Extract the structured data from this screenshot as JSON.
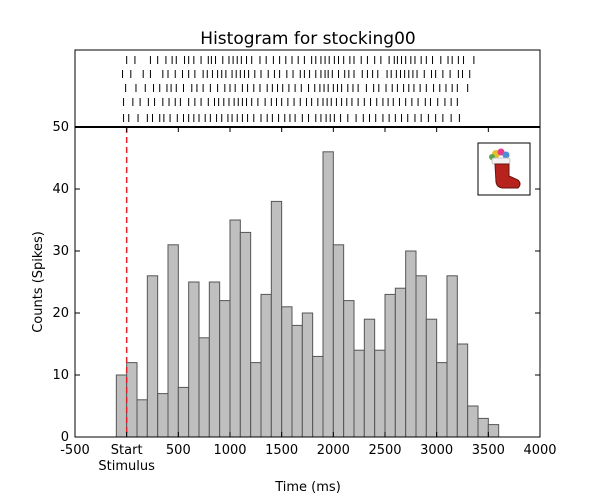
{
  "chart_data": {
    "type": "bar",
    "title": "Histogram for stocking00",
    "xlabel": "Time (ms)",
    "ylabel": "Counts (Spikes)",
    "xlim": [
      -500,
      4000
    ],
    "ylim": [
      0,
      50
    ],
    "x_ticks": [
      {
        "value": -500,
        "label": "-500"
      },
      {
        "value": 0,
        "label": "Start",
        "sublabel": "Stimulus"
      },
      {
        "value": 500,
        "label": "500"
      },
      {
        "value": 1000,
        "label": "1000"
      },
      {
        "value": 1500,
        "label": "1500"
      },
      {
        "value": 2000,
        "label": "2000"
      },
      {
        "value": 2500,
        "label": "2500"
      },
      {
        "value": 3000,
        "label": "3000"
      },
      {
        "value": 3500,
        "label": "3500"
      },
      {
        "value": 4000,
        "label": "4000"
      }
    ],
    "y_ticks": [
      0,
      10,
      20,
      30,
      40,
      50
    ],
    "bin_start": -100,
    "bin_width": 100,
    "counts": [
      10,
      12,
      6,
      26,
      7,
      31,
      8,
      25,
      16,
      25,
      22,
      35,
      33,
      12,
      23,
      38,
      21,
      18,
      20,
      13,
      46,
      31,
      22,
      14,
      19,
      14,
      23,
      24,
      30,
      26,
      19,
      12,
      26,
      15,
      5,
      3,
      2
    ],
    "stimulus_line_x": 0,
    "bar_color": "#bfbfbf",
    "bar_edge_color": "#555555",
    "stimulus_color": "#e8202a",
    "raster_trials": [
      [
        0,
        80,
        230,
        300,
        380,
        440,
        480,
        560,
        600,
        650,
        720,
        790,
        820,
        860,
        930,
        990,
        1030,
        1070,
        1110,
        1160,
        1210,
        1290,
        1350,
        1420,
        1480,
        1540,
        1600,
        1660,
        1720,
        1790,
        1830,
        1880,
        1920,
        1960,
        2010,
        2050,
        2100,
        2160,
        2200,
        2270,
        2330,
        2400,
        2460,
        2540,
        2590,
        2620,
        2660,
        2700,
        2750,
        2790,
        2850,
        2900,
        2960,
        3040,
        3110,
        3150,
        3210,
        3260,
        3360
      ],
      [
        -40,
        40,
        160,
        230,
        350,
        400,
        470,
        540,
        600,
        660,
        740,
        780,
        830,
        880,
        920,
        960,
        1020,
        1060,
        1100,
        1140,
        1180,
        1240,
        1300,
        1370,
        1430,
        1480,
        1550,
        1610,
        1680,
        1720,
        1770,
        1830,
        1880,
        1920,
        1950,
        1990,
        2050,
        2110,
        2150,
        2200,
        2280,
        2330,
        2380,
        2430,
        2520,
        2560,
        2610,
        2650,
        2690,
        2730,
        2770,
        2810,
        2880,
        2950,
        2990,
        3060,
        3130,
        3210,
        3250,
        3320
      ],
      [
        -10,
        90,
        180,
        260,
        320,
        390,
        430,
        480,
        550,
        630,
        680,
        740,
        810,
        880,
        950,
        1000,
        1050,
        1120,
        1170,
        1230,
        1290,
        1360,
        1410,
        1460,
        1510,
        1570,
        1630,
        1690,
        1760,
        1820,
        1870,
        1910,
        1950,
        2000,
        2040,
        2080,
        2140,
        2190,
        2240,
        2320,
        2390,
        2440,
        2510,
        2570,
        2620,
        2680,
        2730,
        2780,
        2840,
        2900,
        2970,
        3030,
        3090,
        3150,
        3200,
        3300
      ],
      [
        -30,
        60,
        130,
        210,
        270,
        350,
        410,
        470,
        520,
        600,
        660,
        720,
        790,
        850,
        890,
        940,
        990,
        1040,
        1080,
        1120,
        1160,
        1210,
        1270,
        1340,
        1400,
        1450,
        1500,
        1560,
        1620,
        1680,
        1740,
        1790,
        1850,
        1900,
        1940,
        1980,
        2030,
        2080,
        2130,
        2180,
        2240,
        2300,
        2360,
        2420,
        2480,
        2530,
        2580,
        2640,
        2700,
        2760,
        2820,
        2890,
        2940,
        3010,
        3080,
        3140,
        3200
      ],
      [
        -30,
        20,
        110,
        200,
        250,
        320,
        360,
        420,
        490,
        550,
        600,
        650,
        700,
        760,
        810,
        870,
        920,
        980,
        1020,
        1070,
        1120,
        1170,
        1230,
        1300,
        1360,
        1410,
        1470,
        1530,
        1580,
        1630,
        1700,
        1760,
        1830,
        1880,
        1930,
        1970,
        2010,
        2070,
        2140,
        2220,
        2290,
        2350,
        2410,
        2480,
        2540,
        2600,
        2660,
        2720,
        2790,
        2850,
        2920,
        2990,
        3060,
        3140,
        3220
      ]
    ]
  }
}
